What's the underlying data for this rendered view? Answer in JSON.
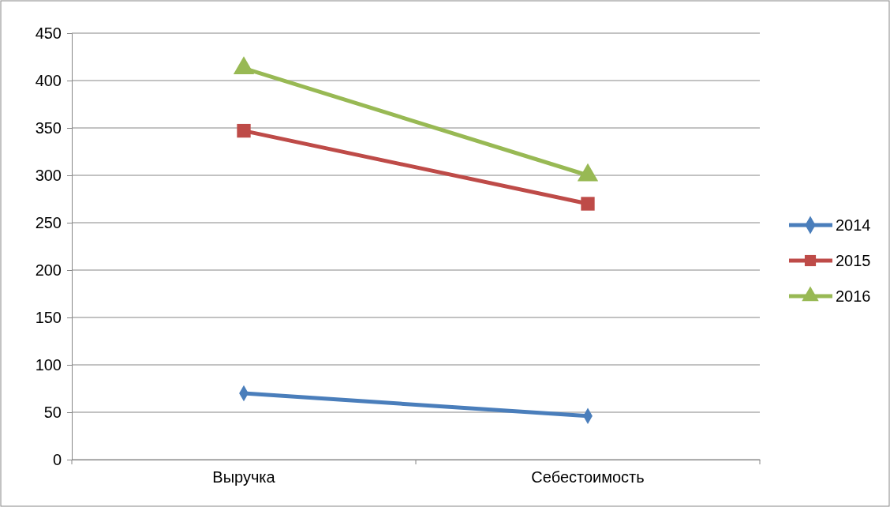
{
  "chart_data": {
    "type": "line",
    "categories": [
      "Выручка",
      "Себестоимость"
    ],
    "series": [
      {
        "name": "2014",
        "color": "#4a7ebb",
        "values": [
          70,
          46
        ],
        "marker": "diamond"
      },
      {
        "name": "2015",
        "color": "#be4b48",
        "values": [
          347,
          270
        ],
        "marker": "square"
      },
      {
        "name": "2016",
        "color": "#98b954",
        "values": [
          413,
          300
        ],
        "marker": "triangle"
      }
    ],
    "ylim": [
      0,
      450
    ],
    "yticks": [
      0,
      50,
      100,
      150,
      200,
      250,
      300,
      350,
      400,
      450
    ],
    "grid": "y",
    "legend": "right"
  }
}
